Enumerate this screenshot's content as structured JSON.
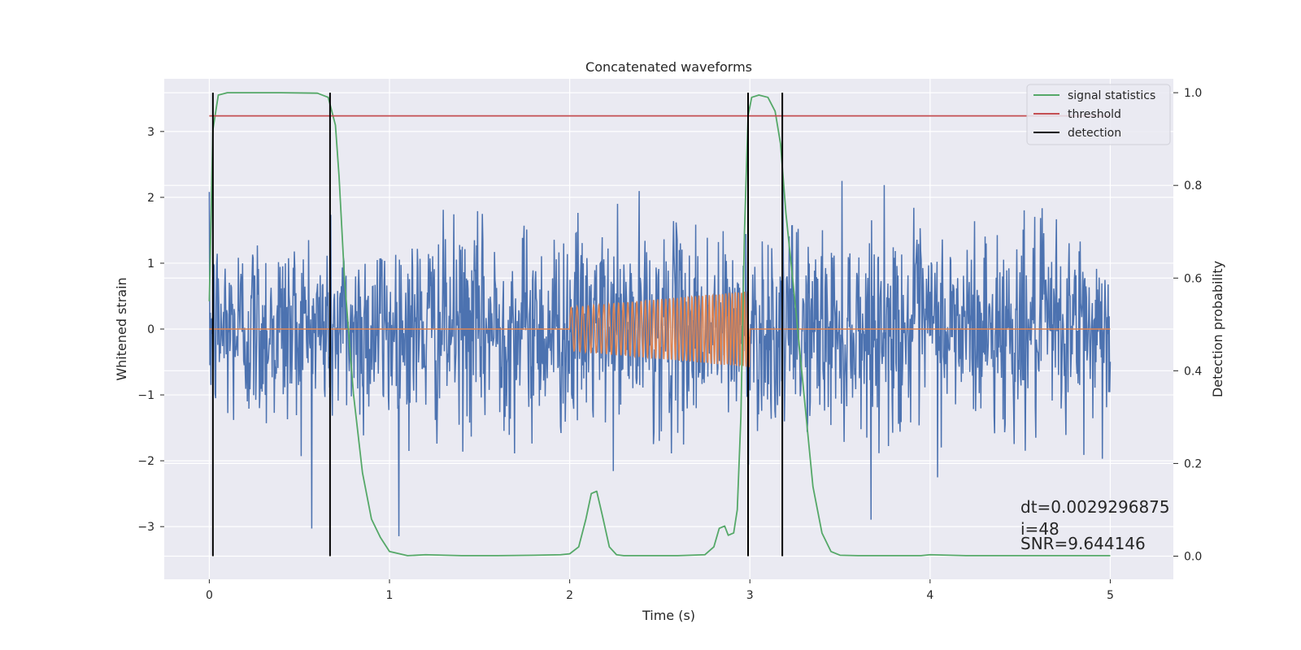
{
  "chart_data": {
    "type": "line",
    "title": "Concatenated waveforms",
    "xlabel": "Time (s)",
    "ylabel": "Whitened strain",
    "y2label": "Detection probability",
    "xlim": [
      -0.25,
      5.35
    ],
    "ylim": [
      -3.8,
      3.8
    ],
    "y2lim": [
      -0.05,
      1.03
    ],
    "x_ticks": [
      0,
      1,
      2,
      3,
      4,
      5
    ],
    "y_ticks": [
      -3,
      -2,
      -1,
      0,
      1,
      2,
      3
    ],
    "y2_ticks": [
      0.0,
      0.2,
      0.4,
      0.6,
      0.8,
      1.0
    ],
    "x_tick_labels": [
      "0",
      "1",
      "2",
      "3",
      "4",
      "5"
    ],
    "y_tick_labels": [
      "−3",
      "−2",
      "−1",
      "0",
      "1",
      "2",
      "3"
    ],
    "y2_tick_labels": [
      "0.0",
      "0.2",
      "0.4",
      "0.6",
      "0.8",
      "1.0"
    ],
    "grid": true,
    "legend_position": "top-right",
    "noise": {
      "color": "#4c72b0",
      "x_range": [
        0,
        5
      ],
      "std": 0.75,
      "peak_abs": 3.4
    },
    "injected_signal": {
      "color": "#dd8452",
      "t_start": 2.0,
      "t_end": 3.0,
      "amp_start": 0.33,
      "amp_end": 0.58,
      "freq_start_hz": 30,
      "freq_end_hz": 60
    },
    "series": [
      {
        "name": "signal statistics",
        "color": "#55a868",
        "axis": "right",
        "x": [
          0,
          0.02,
          0.05,
          0.1,
          0.2,
          0.4,
          0.6,
          0.66,
          0.7,
          0.72,
          0.75,
          0.8,
          0.85,
          0.9,
          0.95,
          1.0,
          1.1,
          1.2,
          1.4,
          1.6,
          1.8,
          1.95,
          2.0,
          2.05,
          2.09,
          2.12,
          2.15,
          2.18,
          2.22,
          2.26,
          2.3,
          2.4,
          2.6,
          2.75,
          2.8,
          2.83,
          2.86,
          2.88,
          2.91,
          2.93,
          2.95,
          2.97,
          2.99,
          3.01,
          3.05,
          3.1,
          3.14,
          3.17,
          3.2,
          3.25,
          3.3,
          3.35,
          3.4,
          3.45,
          3.5,
          3.6,
          3.8,
          3.95,
          4.0,
          4.2,
          4.5,
          4.8,
          5.0
        ],
        "y": [
          0.55,
          0.92,
          0.995,
          1.0,
          1.0,
          1.0,
          0.999,
          0.99,
          0.93,
          0.82,
          0.6,
          0.35,
          0.18,
          0.08,
          0.04,
          0.01,
          0.001,
          0.003,
          0.001,
          0.001,
          0.002,
          0.003,
          0.005,
          0.02,
          0.08,
          0.135,
          0.14,
          0.09,
          0.02,
          0.003,
          0.001,
          0.001,
          0.001,
          0.003,
          0.02,
          0.06,
          0.065,
          0.045,
          0.05,
          0.1,
          0.3,
          0.7,
          0.95,
          0.99,
          0.995,
          0.99,
          0.96,
          0.89,
          0.74,
          0.55,
          0.35,
          0.15,
          0.05,
          0.01,
          0.002,
          0.001,
          0.001,
          0.001,
          0.003,
          0.001,
          0.001,
          0.001,
          0.001
        ]
      },
      {
        "name": "threshold",
        "color": "#c44e52",
        "axis": "right",
        "x": [
          0,
          5
        ],
        "y": [
          0.95,
          0.95
        ]
      },
      {
        "name": "detection",
        "color": "#000000",
        "axis": "right",
        "type": "vlines",
        "x": [
          0.02,
          0.67,
          2.99,
          3.18
        ],
        "y_range": [
          0.0,
          1.0
        ]
      }
    ],
    "annotations": [
      "dt=0.0029296875",
      " i=48",
      "SNR=9.644146"
    ]
  },
  "colors": {
    "axes_bg": "#eaeaf2",
    "grid": "#ffffff",
    "text": "#262626"
  }
}
